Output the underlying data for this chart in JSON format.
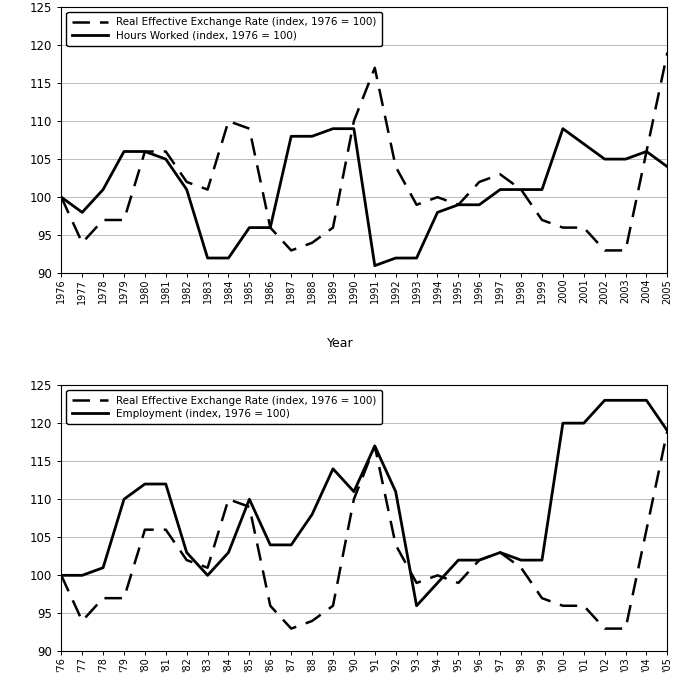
{
  "years": [
    1976,
    1977,
    1978,
    1979,
    1980,
    1981,
    1982,
    1983,
    1984,
    1985,
    1986,
    1987,
    1988,
    1989,
    1990,
    1991,
    1992,
    1993,
    1994,
    1995,
    1996,
    1997,
    1998,
    1999,
    2000,
    2001,
    2002,
    2003,
    2004,
    2005
  ],
  "year_labels_a": [
    "1976",
    "1977",
    "1978",
    "1979",
    "1980",
    "1981",
    "1982",
    "1983",
    "1984",
    "1985",
    "1986",
    "1987",
    "1988",
    "1989",
    "1990",
    "1991",
    "1992",
    "1993",
    "1994",
    "1995",
    "1996",
    "1997",
    "1998",
    "1999",
    "2000",
    "2001",
    "2002",
    "2003",
    "2004",
    "2005"
  ],
  "year_labels_b": [
    "'76",
    "'77",
    "'78",
    "'79",
    "'80",
    "'81",
    "'82",
    "'83",
    "'84",
    "'85",
    "'86",
    "'87",
    "'88",
    "'89",
    "'90",
    "'91",
    "'92",
    "'93",
    "'94",
    "'95",
    "'96",
    "'97",
    "'98",
    "'99",
    "'00",
    "'01",
    "'02",
    "'03",
    "'04",
    "'05"
  ],
  "reer": [
    100,
    94,
    97,
    97,
    106,
    106,
    102,
    101,
    110,
    109,
    96,
    93,
    94,
    96,
    110,
    117,
    104,
    99,
    100,
    99,
    102,
    103,
    101,
    97,
    96,
    96,
    93,
    93,
    106,
    119
  ],
  "hours_worked": [
    100,
    98,
    101,
    106,
    106,
    105,
    101,
    92,
    92,
    96,
    96,
    108,
    108,
    109,
    109,
    91,
    92,
    92,
    98,
    99,
    99,
    101,
    101,
    101,
    109,
    107,
    105,
    105,
    106,
    104
  ],
  "employment": [
    100,
    100,
    101,
    110,
    112,
    112,
    103,
    100,
    103,
    110,
    104,
    104,
    108,
    114,
    111,
    117,
    111,
    96,
    99,
    102,
    102,
    103,
    102,
    102,
    120,
    120,
    123,
    123,
    123,
    119
  ],
  "xlabel": "Year",
  "ylim": [
    90,
    125
  ],
  "yticks": [
    90,
    95,
    100,
    105,
    110,
    115,
    120,
    125
  ],
  "legend_a_line1": "Real Effective Exchange Rate (index, 1976 = 100)",
  "legend_a_line2": "Hours Worked (index, 1976 = 100)",
  "legend_b_line1": "Real Effective Exchange Rate (index, 1976 = 100)",
  "legend_b_line2": "Employment (index, 1976 = 100)",
  "line_color": "black",
  "background_color": "white",
  "grid_color": "#bbbbbb",
  "dash_pattern": [
    7,
    4
  ]
}
